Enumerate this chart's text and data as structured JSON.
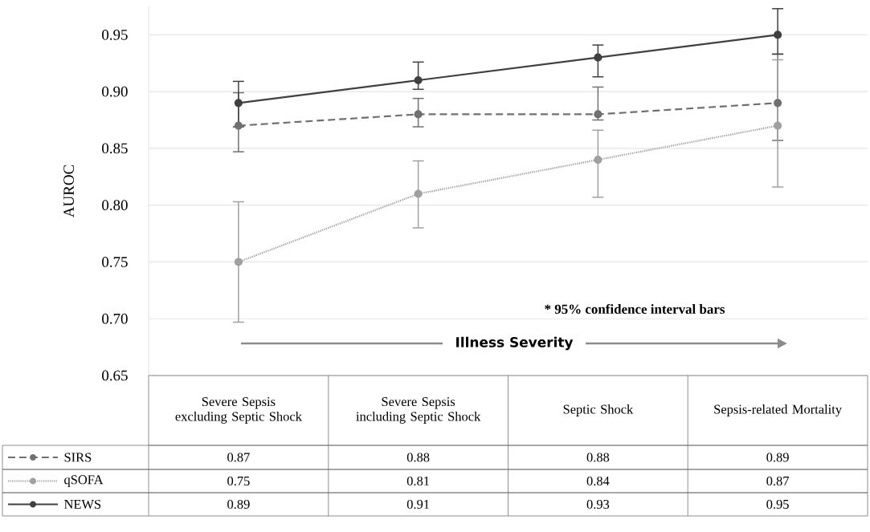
{
  "chart_data": {
    "type": "line",
    "ylabel": "AUROC",
    "categories": [
      "Severe Sepsis excluding Septic Shock",
      "Severe Sepsis including Septic Shock",
      "Septic Shock",
      "Sepsis-related Mortality"
    ],
    "series": [
      {
        "name": "SIRS",
        "color": "#707070",
        "line_style": "dashed",
        "values": [
          0.87,
          0.88,
          0.88,
          0.89
        ],
        "errors": [
          [
            0.847,
            0.899
          ],
          [
            0.869,
            0.894
          ],
          [
            0.875,
            0.904
          ],
          [
            0.857,
            0.933
          ]
        ]
      },
      {
        "name": "qSOFA",
        "color": "#a0a0a0",
        "line_style": "dotted",
        "values": [
          0.75,
          0.81,
          0.84,
          0.87
        ],
        "errors": [
          [
            0.697,
            0.803
          ],
          [
            0.78,
            0.839
          ],
          [
            0.807,
            0.866
          ],
          [
            0.816,
            0.928
          ]
        ]
      },
      {
        "name": "NEWS",
        "color": "#404040",
        "line_style": "solid",
        "values": [
          0.89,
          0.91,
          0.93,
          0.95
        ],
        "errors": [
          [
            0.869,
            0.909
          ],
          [
            0.902,
            0.926
          ],
          [
            0.913,
            0.941
          ],
          [
            0.933,
            0.973
          ]
        ]
      }
    ],
    "ylim": [
      0.65,
      0.975
    ],
    "yticks": [
      0.65,
      {
        "value": 0.7,
        "label": "0.70"
      },
      0.75,
      {
        "value": 0.8,
        "label": "0.80"
      },
      0.85,
      {
        "value": 0.9,
        "label": "0.90"
      },
      0.95
    ],
    "grid": "y",
    "marker": "circle",
    "legend": "bottom",
    "data_labels": true,
    "annotations": [
      "* 95% confidence interval bars",
      "Illness Severity"
    ]
  }
}
